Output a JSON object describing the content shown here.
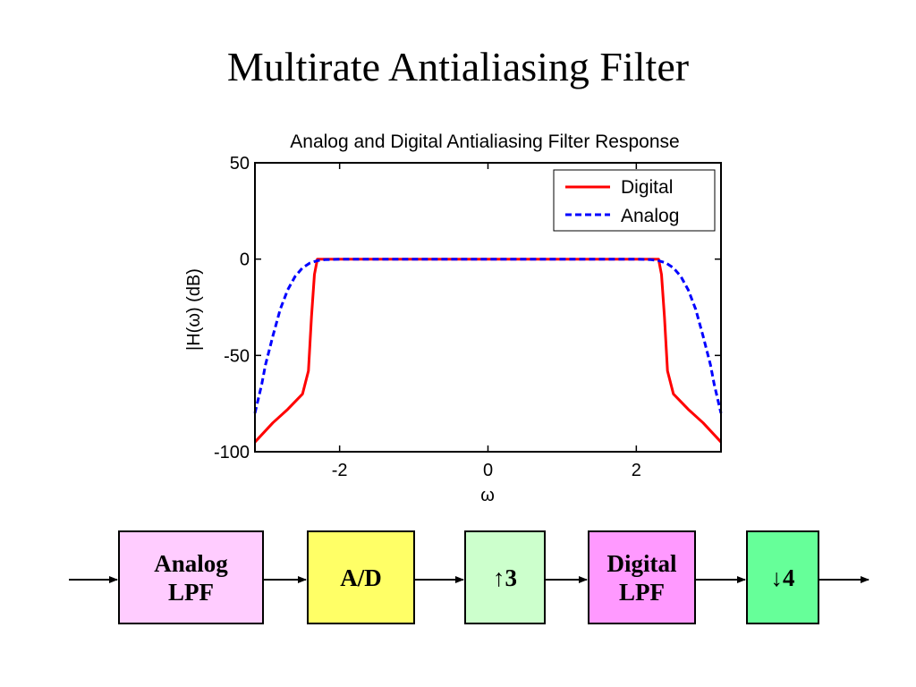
{
  "slide": {
    "title": "Multirate Antialiasing Filter"
  },
  "chart_data": {
    "type": "line",
    "title": "Analog and Digital Antialiasing Filter Response",
    "xlabel": "ω",
    "ylabel": "|H(ω) (dB)",
    "xlim": [
      -3.1416,
      3.1416
    ],
    "ylim": [
      -100,
      50
    ],
    "xticks": [
      -2,
      0,
      2
    ],
    "yticks": [
      -100,
      -50,
      0,
      50
    ],
    "grid": false,
    "legend_position": "top-right",
    "series": [
      {
        "name": "Digital",
        "color": "#ff0000",
        "style": "solid",
        "x": [
          -3.1416,
          -2.9,
          -2.7,
          -2.5,
          -2.42,
          -2.38,
          -2.34,
          -2.3,
          -2.25,
          -2.2,
          -2.0,
          0,
          2.0,
          2.2,
          2.25,
          2.3,
          2.34,
          2.38,
          2.42,
          2.5,
          2.7,
          2.9,
          3.1416
        ],
        "y": [
          -95,
          -85,
          -78,
          -70,
          -58,
          -30,
          -8,
          0,
          0,
          0,
          0,
          0,
          0,
          0,
          0,
          0,
          -8,
          -30,
          -58,
          -70,
          -78,
          -85,
          -95
        ]
      },
      {
        "name": "Analog",
        "color": "#0000ff",
        "style": "dashed",
        "x": [
          -3.1416,
          -3.05,
          -3.0,
          -2.9,
          -2.8,
          -2.7,
          -2.6,
          -2.5,
          -2.4,
          -2.3,
          -2.2,
          -2.0,
          0,
          2.0,
          2.2,
          2.3,
          2.4,
          2.5,
          2.6,
          2.7,
          2.8,
          2.9,
          3.0,
          3.05,
          3.1416
        ],
        "y": [
          -80,
          -65,
          -55,
          -40,
          -26,
          -16,
          -9,
          -4.5,
          -2,
          -0.8,
          -0.3,
          0,
          0,
          0,
          -0.3,
          -0.8,
          -2,
          -4.5,
          -9,
          -16,
          -26,
          -40,
          -55,
          -65,
          -80
        ]
      }
    ]
  },
  "diagram": {
    "blocks": [
      {
        "id": "analog-lpf",
        "label": "Analog\nLPF",
        "color": "#ffccff"
      },
      {
        "id": "ad",
        "label": "A/D",
        "color": "#ffff66"
      },
      {
        "id": "up3",
        "label": "↑3",
        "color": "#ccffcc"
      },
      {
        "id": "digital-lpf",
        "label": "Digital\nLPF",
        "color": "#ff99ff"
      },
      {
        "id": "down4",
        "label": "↓4",
        "color": "#66ff99"
      }
    ]
  }
}
